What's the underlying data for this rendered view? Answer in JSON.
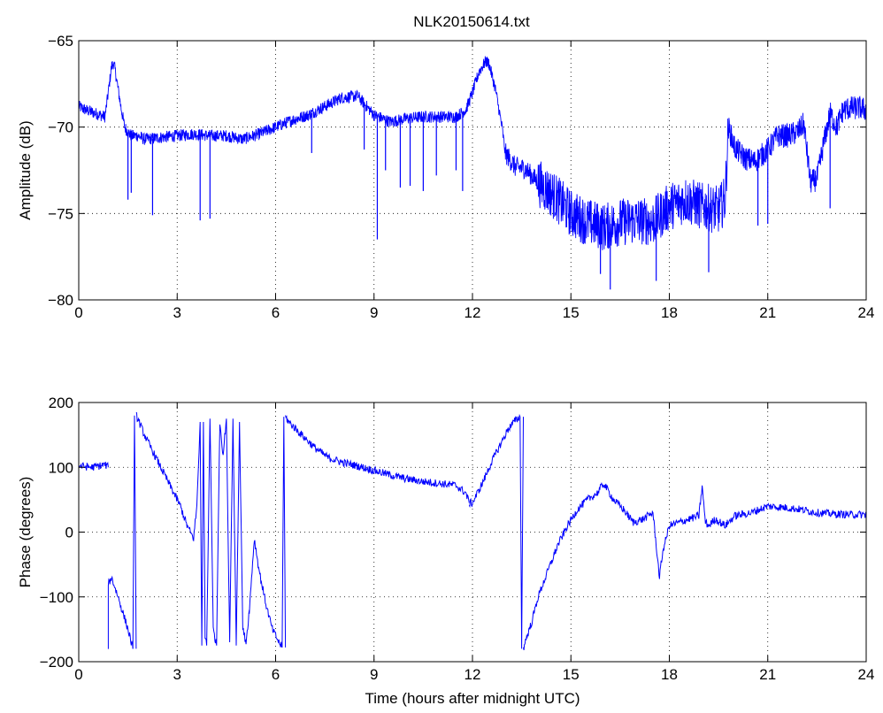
{
  "figure": {
    "title": "NLK20150614.txt"
  },
  "chart_data": [
    {
      "type": "line",
      "title": "NLK20150614.txt",
      "xlabel": "",
      "ylabel": "Amplitude (dB)",
      "xlim": [
        0,
        24
      ],
      "ylim": [
        -80,
        -65
      ],
      "xticks": [
        0,
        3,
        6,
        9,
        12,
        15,
        18,
        21,
        24
      ],
      "yticks": [
        -80,
        -75,
        -70,
        -65
      ],
      "grid": true,
      "series": [
        {
          "color": "#0000ff",
          "x": [
            0,
            0.2,
            0.5,
            0.8,
            0.9,
            1.0,
            1.05,
            1.1,
            1.2,
            1.3,
            1.4,
            1.5,
            1.6,
            1.8,
            2.0,
            2.5,
            3.0,
            3.5,
            4.0,
            4.5,
            5.0,
            5.5,
            6.0,
            6.5,
            7.0,
            7.5,
            8.0,
            8.5,
            9.0,
            9.5,
            10.0,
            10.5,
            11.0,
            11.5,
            11.8,
            12.0,
            12.2,
            12.4,
            12.5,
            12.7,
            12.9,
            13.0,
            13.3,
            13.6,
            14.0,
            14.5,
            15.0,
            15.5,
            16.0,
            16.5,
            17.0,
            17.5,
            18.0,
            18.5,
            19.0,
            19.5,
            19.7,
            19.8,
            20.0,
            20.3,
            20.6,
            21.0,
            21.3,
            21.6,
            21.9,
            22.1,
            22.3,
            22.5,
            22.7,
            22.9,
            23.1,
            23.3,
            23.5,
            23.8,
            24.0
          ],
          "y": [
            -68.8,
            -69.0,
            -69.2,
            -69.4,
            -68.0,
            -66.5,
            -66.3,
            -66.6,
            -67.8,
            -69.0,
            -70.0,
            -70.3,
            -70.5,
            -70.5,
            -70.7,
            -70.6,
            -70.5,
            -70.4,
            -70.5,
            -70.5,
            -70.7,
            -70.4,
            -70.0,
            -69.6,
            -69.3,
            -68.8,
            -68.3,
            -68.2,
            -69.3,
            -69.7,
            -69.5,
            -69.4,
            -69.4,
            -69.4,
            -69.0,
            -68.0,
            -66.8,
            -66.2,
            -66.3,
            -67.8,
            -70.0,
            -71.5,
            -72.3,
            -72.4,
            -73.2,
            -74.0,
            -75.0,
            -75.5,
            -75.8,
            -75.5,
            -75.4,
            -75.5,
            -74.6,
            -74.2,
            -74.6,
            -74.8,
            -74.2,
            -70.0,
            -71.2,
            -71.8,
            -72.0,
            -71.3,
            -70.5,
            -70.5,
            -70.3,
            -69.8,
            -73.2,
            -73.0,
            -71.0,
            -69.2,
            -70.0,
            -69.0,
            -68.9,
            -68.9,
            -69.0
          ],
          "dips": [
            {
              "x": 1.5,
              "y": -74.2
            },
            {
              "x": 1.6,
              "y": -73.8
            },
            {
              "x": 2.25,
              "y": -75.1
            },
            {
              "x": 3.7,
              "y": -75.4
            },
            {
              "x": 4.0,
              "y": -75.3
            },
            {
              "x": 7.1,
              "y": -71.5
            },
            {
              "x": 8.7,
              "y": -71.3
            },
            {
              "x": 9.1,
              "y": -76.5
            },
            {
              "x": 9.35,
              "y": -72.5
            },
            {
              "x": 9.8,
              "y": -73.5
            },
            {
              "x": 10.1,
              "y": -73.4
            },
            {
              "x": 10.5,
              "y": -73.7
            },
            {
              "x": 10.9,
              "y": -72.8
            },
            {
              "x": 11.5,
              "y": -72.5
            },
            {
              "x": 11.7,
              "y": -73.7
            },
            {
              "x": 15.9,
              "y": -78.5
            },
            {
              "x": 16.2,
              "y": -79.4
            },
            {
              "x": 17.6,
              "y": -78.9
            },
            {
              "x": 19.2,
              "y": -78.4
            },
            {
              "x": 20.7,
              "y": -75.7
            },
            {
              "x": 21.0,
              "y": -75.6
            },
            {
              "x": 22.9,
              "y": -74.7
            }
          ]
        }
      ]
    },
    {
      "type": "line",
      "title": "",
      "xlabel": "Time (hours after midnight UTC)",
      "ylabel": "Phase (degrees)",
      "xlim": [
        0,
        24
      ],
      "ylim": [
        -200,
        200
      ],
      "xticks": [
        0,
        3,
        6,
        9,
        12,
        15,
        18,
        21,
        24
      ],
      "yticks": [
        -200,
        -100,
        0,
        100,
        200
      ],
      "grid": true,
      "series": [
        {
          "color": "#0000ff",
          "segments": [
            {
              "x": [
                0,
                0.4,
                0.8,
                0.9
              ],
              "y": [
                102,
                100,
                104,
                100
              ]
            },
            {
              "x": [
                0.9,
                0.9,
                1.0,
                1.2,
                1.5,
                1.65
              ],
              "y": [
                -175,
                -80,
                -70,
                -100,
                -150,
                -180
              ]
            },
            {
              "x": [
                1.65,
                1.7,
                1.75
              ],
              "y": [
                -180,
                180,
                -180
              ]
            },
            {
              "x": [
                1.75,
                1.8,
                2.0,
                2.3,
                2.6,
                2.9,
                3.1,
                3.3,
                3.5
              ],
              "y": [
                180,
                175,
                150,
                120,
                90,
                60,
                40,
                10,
                -10
              ]
            },
            {
              "x": [
                3.5,
                3.6,
                3.7,
                3.75,
                3.8,
                3.85,
                3.9,
                4.0,
                4.1,
                4.2,
                4.3,
                4.4,
                4.5,
                4.6,
                4.7,
                4.8,
                4.9,
                5.0,
                5.1,
                5.2
              ],
              "y": [
                -10,
                40,
                170,
                -175,
                170,
                -160,
                -175,
                175,
                -150,
                -175,
                170,
                120,
                175,
                -170,
                175,
                -175,
                170,
                -150,
                -170,
                -120
              ]
            },
            {
              "x": [
                5.2,
                5.35,
                5.5,
                5.7,
                5.9,
                6.1,
                6.2
              ],
              "y": [
                -120,
                -10,
                -60,
                -110,
                -150,
                -170,
                -178
              ]
            },
            {
              "x": [
                6.2,
                6.25,
                6.3
              ],
              "y": [
                -178,
                178,
                -178
              ]
            },
            {
              "x": [
                6.3,
                6.4,
                6.8,
                7.2,
                7.6,
                8.0,
                8.5,
                9.0,
                9.5,
                10.0,
                10.5,
                11.0,
                11.5,
                11.8,
                11.9
              ],
              "y": [
                178,
                170,
                150,
                130,
                115,
                108,
                102,
                95,
                88,
                82,
                78,
                75,
                72,
                60,
                45
              ]
            },
            {
              "x": [
                11.9,
                12.0,
                12.3,
                12.6,
                12.9,
                13.1,
                13.3,
                13.45
              ],
              "y": [
                45,
                45,
                75,
                110,
                140,
                160,
                172,
                178
              ]
            },
            {
              "x": [
                13.45,
                13.5,
                13.55
              ],
              "y": [
                178,
                -180,
                178
              ]
            },
            {
              "x": [
                13.55,
                13.6,
                13.8,
                14.0,
                14.3,
                14.6,
                14.9,
                15.2,
                15.5,
                15.8,
                16.0,
                16.3,
                16.6,
                16.9,
                17.2,
                17.5,
                17.6,
                17.7,
                17.8,
                18.0,
                18.3,
                18.6,
                18.9,
                19.0,
                19.1,
                19.2,
                19.4,
                19.7,
                20.0,
                20.5,
                21.0,
                21.5,
                22.0,
                22.5,
                23.0,
                23.5,
                24.0
              ],
              "y": [
                -180,
                -170,
                -140,
                -100,
                -60,
                -20,
                10,
                35,
                50,
                60,
                75,
                50,
                35,
                15,
                20,
                30,
                -20,
                -70,
                -30,
                10,
                15,
                20,
                25,
                70,
                15,
                10,
                20,
                10,
                25,
                30,
                40,
                38,
                35,
                30,
                28,
                27,
                27
              ]
            }
          ]
        }
      ]
    }
  ]
}
